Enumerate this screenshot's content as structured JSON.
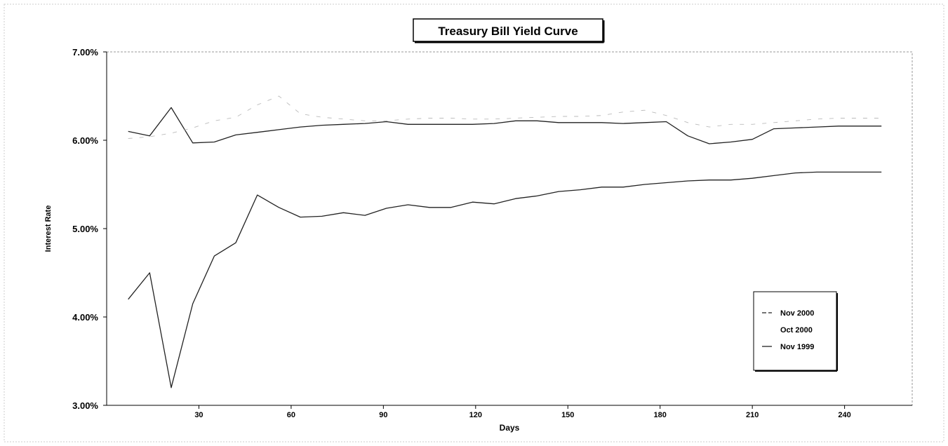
{
  "chart_data": {
    "type": "line",
    "title": "Treasury Bill Yield Curve",
    "xlabel": "Days",
    "ylabel": "Interest Rate",
    "xlim": [
      0,
      262
    ],
    "ylim": [
      3.0,
      7.0
    ],
    "x_ticks": [
      30,
      60,
      90,
      120,
      150,
      180,
      210,
      240
    ],
    "y_ticks": [
      "3.00%",
      "4.00%",
      "5.00%",
      "6.00%",
      "7.00%"
    ],
    "y_tick_values": [
      3.0,
      4.0,
      5.0,
      6.0,
      7.0
    ],
    "grid": false,
    "legend_position": "bottom-right",
    "legend": [
      "Nov 2000",
      "Oct 2000",
      "Nov 1999"
    ],
    "series": [
      {
        "name": "Nov 2000",
        "color": "#222222",
        "x": [
          7,
          14,
          21,
          28,
          35,
          42,
          49,
          56,
          63,
          70,
          77,
          84,
          91,
          98,
          105,
          112,
          119,
          126,
          133,
          140,
          147,
          154,
          161,
          168,
          175,
          182,
          189,
          196,
          203,
          210,
          217,
          224,
          231,
          238,
          245,
          252
        ],
        "y": [
          6.1,
          6.05,
          6.37,
          5.97,
          5.98,
          6.06,
          6.09,
          6.12,
          6.15,
          6.17,
          6.18,
          6.19,
          6.21,
          6.18,
          6.18,
          6.18,
          6.18,
          6.19,
          6.22,
          6.22,
          6.2,
          6.2,
          6.2,
          6.19,
          6.2,
          6.21,
          6.05,
          5.96,
          5.98,
          6.01,
          6.13,
          6.14,
          6.15,
          6.16,
          6.16,
          6.16
        ]
      },
      {
        "name": "Oct 2000",
        "color": "#bbbbbb",
        "x": [
          7,
          14,
          21,
          28,
          35,
          42,
          49,
          56,
          63,
          70,
          77,
          84,
          91,
          98,
          105,
          112,
          119,
          126,
          133,
          140,
          147,
          154,
          161,
          168,
          175,
          182,
          189,
          196,
          203,
          210,
          217,
          224,
          231,
          238,
          245,
          252
        ],
        "y": [
          6.02,
          6.04,
          6.08,
          6.14,
          6.22,
          6.26,
          6.4,
          6.5,
          6.3,
          6.26,
          6.24,
          6.22,
          6.22,
          6.24,
          6.25,
          6.25,
          6.24,
          6.24,
          6.25,
          6.26,
          6.27,
          6.27,
          6.28,
          6.32,
          6.34,
          6.28,
          6.2,
          6.15,
          6.18,
          6.18,
          6.2,
          6.22,
          6.24,
          6.25,
          6.25,
          6.25
        ]
      },
      {
        "name": "Nov 1999",
        "color": "#222222",
        "x": [
          7,
          14,
          21,
          28,
          35,
          42,
          49,
          56,
          63,
          70,
          77,
          84,
          91,
          98,
          105,
          112,
          119,
          126,
          133,
          140,
          147,
          154,
          161,
          168,
          175,
          182,
          189,
          196,
          203,
          210,
          217,
          224,
          231,
          238,
          245,
          252
        ],
        "y": [
          4.2,
          4.5,
          3.2,
          4.15,
          4.69,
          4.84,
          5.38,
          5.24,
          5.13,
          5.14,
          5.18,
          5.15,
          5.23,
          5.27,
          5.24,
          5.24,
          5.3,
          5.28,
          5.34,
          5.37,
          5.42,
          5.44,
          5.47,
          5.47,
          5.5,
          5.52,
          5.54,
          5.55,
          5.55,
          5.57,
          5.6,
          5.63,
          5.64,
          5.64,
          5.64,
          5.64
        ]
      }
    ]
  }
}
